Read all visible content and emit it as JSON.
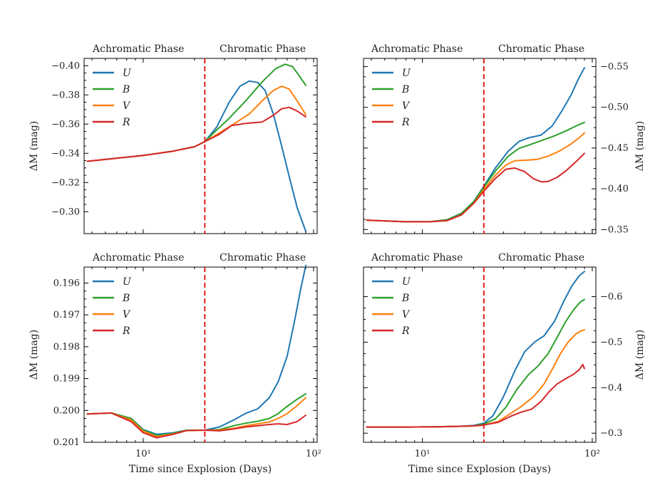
{
  "figure": {
    "xlabel": "Time since Explosion (Days)",
    "ylabel": "ΔM (mag)",
    "phase_labels": {
      "achromatic": "Achromatic Phase",
      "chromatic": "Chromatic Phase"
    },
    "divider_day": 23,
    "colors": {
      "U": "#1f77b4",
      "B": "#2ca02c",
      "V": "#ff7f0e",
      "R": "#d62728",
      "divider": "#e41a1c"
    }
  },
  "chart_data": [
    {
      "panel": "top-left",
      "type": "line",
      "xscale": "log",
      "xlim": [
        4.5,
        105
      ],
      "ylim": [
        -0.285,
        -0.405
      ],
      "yticks": [
        -0.3,
        -0.32,
        -0.34,
        -0.36,
        -0.38,
        -0.4
      ],
      "ytick_labels": [
        "−0.30",
        "−0.32",
        "−0.34",
        "−0.36",
        "−0.38",
        "−0.40"
      ],
      "xticks": [
        10,
        100
      ],
      "xtick_labels": [
        "",
        ""
      ],
      "yaxis_side": "left",
      "legend": "top-left",
      "series": [
        {
          "name": "U",
          "x": [
            4.7,
            10,
            15,
            20,
            23,
            27,
            32,
            37,
            42,
            47,
            52,
            58,
            65,
            72,
            80,
            90
          ],
          "y": [
            -0.3345,
            -0.3385,
            -0.3415,
            -0.3445,
            -0.348,
            -0.358,
            -0.375,
            -0.386,
            -0.3895,
            -0.3885,
            -0.383,
            -0.367,
            -0.345,
            -0.324,
            -0.303,
            -0.2865
          ]
        },
        {
          "name": "B",
          "x": [
            4.7,
            10,
            15,
            20,
            23,
            27,
            32,
            40,
            50,
            60,
            68,
            75,
            82,
            90
          ],
          "y": [
            -0.3345,
            -0.3385,
            -0.3415,
            -0.3445,
            -0.348,
            -0.356,
            -0.364,
            -0.376,
            -0.389,
            -0.398,
            -0.401,
            -0.3995,
            -0.3935,
            -0.3865
          ]
        },
        {
          "name": "V",
          "x": [
            4.7,
            10,
            15,
            20,
            23,
            28,
            35,
            42,
            50,
            58,
            65,
            72,
            80,
            90
          ],
          "y": [
            -0.3345,
            -0.3385,
            -0.3415,
            -0.3445,
            -0.348,
            -0.354,
            -0.361,
            -0.367,
            -0.376,
            -0.383,
            -0.386,
            -0.384,
            -0.376,
            -0.3665
          ]
        },
        {
          "name": "R",
          "x": [
            4.7,
            10,
            15,
            20,
            23,
            28,
            33,
            40,
            50,
            58,
            65,
            72,
            80,
            90
          ],
          "y": [
            -0.3345,
            -0.3385,
            -0.3415,
            -0.3445,
            -0.348,
            -0.353,
            -0.359,
            -0.3605,
            -0.3615,
            -0.366,
            -0.3705,
            -0.3715,
            -0.369,
            -0.365
          ]
        }
      ]
    },
    {
      "panel": "top-right",
      "type": "line",
      "xscale": "log",
      "xlim": [
        4.5,
        105
      ],
      "ylim": [
        -0.345,
        -0.56
      ],
      "yticks": [
        -0.35,
        -0.4,
        -0.45,
        -0.5,
        -0.55
      ],
      "ytick_labels": [
        "−0.35",
        "−0.40",
        "−0.45",
        "−0.50",
        "−0.55"
      ],
      "xticks": [
        10,
        100
      ],
      "xtick_labels": [
        "",
        ""
      ],
      "yaxis_side": "right",
      "legend": "top-left",
      "series": [
        {
          "name": "U",
          "x": [
            4.7,
            8,
            11,
            14,
            17,
            20,
            23,
            27,
            32,
            37,
            42,
            50,
            58,
            66,
            75,
            83,
            90
          ],
          "y": [
            -0.3615,
            -0.3595,
            -0.3595,
            -0.362,
            -0.37,
            -0.384,
            -0.403,
            -0.426,
            -0.446,
            -0.458,
            -0.4625,
            -0.466,
            -0.477,
            -0.495,
            -0.515,
            -0.535,
            -0.5485
          ]
        },
        {
          "name": "B",
          "x": [
            4.7,
            8,
            11,
            14,
            17,
            20,
            23,
            27,
            32,
            37,
            42,
            50,
            60,
            70,
            80,
            90
          ],
          "y": [
            -0.3615,
            -0.3595,
            -0.3595,
            -0.362,
            -0.37,
            -0.384,
            -0.402,
            -0.422,
            -0.44,
            -0.4495,
            -0.4535,
            -0.459,
            -0.465,
            -0.471,
            -0.477,
            -0.4815
          ]
        },
        {
          "name": "V",
          "x": [
            4.7,
            8,
            11,
            14,
            17,
            20,
            23,
            27,
            31,
            35,
            40,
            47,
            55,
            65,
            75,
            83,
            90
          ],
          "y": [
            -0.3615,
            -0.3595,
            -0.3595,
            -0.361,
            -0.368,
            -0.382,
            -0.399,
            -0.417,
            -0.429,
            -0.4345,
            -0.435,
            -0.436,
            -0.44,
            -0.447,
            -0.455,
            -0.462,
            -0.4685
          ]
        },
        {
          "name": "R",
          "x": [
            4.7,
            8,
            11,
            14,
            17,
            20,
            23,
            27,
            31,
            35,
            40,
            45,
            50,
            55,
            62,
            70,
            80,
            90
          ],
          "y": [
            -0.3615,
            -0.3595,
            -0.3595,
            -0.361,
            -0.368,
            -0.382,
            -0.397,
            -0.413,
            -0.424,
            -0.4255,
            -0.421,
            -0.4125,
            -0.4085,
            -0.409,
            -0.414,
            -0.422,
            -0.433,
            -0.4435
          ]
        }
      ]
    },
    {
      "panel": "bottom-left",
      "type": "line",
      "xscale": "log",
      "xlim": [
        4.5,
        105
      ],
      "ylim": [
        0.201,
        0.1955
      ],
      "yticks": [
        0.196,
        0.197,
        0.198,
        0.199,
        0.2,
        0.201
      ],
      "ytick_labels": [
        "0.196",
        "0.197",
        "0.198",
        "0.199",
        "0.200",
        "0.201"
      ],
      "xticks": [
        10,
        100
      ],
      "xtick_labels": [
        "10¹",
        "10²"
      ],
      "yaxis_side": "left",
      "legend": "top-left",
      "series": [
        {
          "name": "U",
          "x": [
            4.7,
            6.5,
            8.5,
            10,
            12,
            15,
            18,
            23,
            28,
            34,
            40,
            47,
            55,
            62,
            70,
            78,
            84,
            90
          ],
          "y": [
            0.20011,
            0.20008,
            0.20025,
            0.2006,
            0.20075,
            0.2007,
            0.20062,
            0.20062,
            0.20052,
            0.2003,
            0.20009,
            0.19995,
            0.1996,
            0.1991,
            0.1983,
            0.1971,
            0.1962,
            0.19545
          ]
        },
        {
          "name": "B",
          "x": [
            4.7,
            6.5,
            8.5,
            10,
            12,
            15,
            18,
            23,
            28,
            34,
            40,
            47,
            55,
            62,
            70,
            80,
            90
          ],
          "y": [
            0.20011,
            0.20008,
            0.20025,
            0.20062,
            0.20078,
            0.20072,
            0.20062,
            0.20062,
            0.2006,
            0.20048,
            0.2004,
            0.20034,
            0.20025,
            0.2001,
            0.19987,
            0.19965,
            0.19948
          ]
        },
        {
          "name": "V",
          "x": [
            4.7,
            6.5,
            8.5,
            10,
            12,
            15,
            18,
            23,
            28,
            34,
            40,
            47,
            55,
            62,
            70,
            80,
            90
          ],
          "y": [
            0.20011,
            0.20008,
            0.2003,
            0.20065,
            0.20082,
            0.20074,
            0.20063,
            0.20062,
            0.20062,
            0.20056,
            0.20048,
            0.20042,
            0.20036,
            0.20025,
            0.2001,
            0.19985,
            0.1996
          ]
        },
        {
          "name": "R",
          "x": [
            4.7,
            6.5,
            8.5,
            10,
            12,
            15,
            18,
            23,
            28,
            34,
            40,
            47,
            55,
            62,
            70,
            80,
            90
          ],
          "y": [
            0.20011,
            0.20008,
            0.20035,
            0.2007,
            0.20086,
            0.20075,
            0.20063,
            0.20062,
            0.20064,
            0.20058,
            0.20052,
            0.20048,
            0.20044,
            0.20042,
            0.20044,
            0.20035,
            0.20015
          ]
        }
      ]
    },
    {
      "panel": "bottom-right",
      "type": "line",
      "xscale": "log",
      "xlim": [
        4.5,
        105
      ],
      "ylim": [
        -0.28,
        -0.665
      ],
      "yticks": [
        -0.3,
        -0.4,
        -0.5,
        -0.6
      ],
      "ytick_labels": [
        "−0.3",
        "−0.4",
        "−0.5",
        "−0.6"
      ],
      "xticks": [
        10,
        100
      ],
      "xtick_labels": [
        "10¹",
        "10²"
      ],
      "yaxis_side": "right",
      "legend": "top-left",
      "series": [
        {
          "name": "U",
          "x": [
            4.7,
            8,
            12,
            16,
            20,
            23,
            26,
            30,
            35,
            40,
            46,
            52,
            60,
            68,
            76,
            84,
            90
          ],
          "y": [
            -0.3135,
            -0.3135,
            -0.314,
            -0.315,
            -0.317,
            -0.322,
            -0.338,
            -0.38,
            -0.437,
            -0.479,
            -0.501,
            -0.514,
            -0.546,
            -0.59,
            -0.624,
            -0.646,
            -0.6555
          ]
        },
        {
          "name": "B",
          "x": [
            4.7,
            8,
            12,
            16,
            20,
            23,
            27,
            31,
            36,
            42,
            48,
            55,
            62,
            70,
            78,
            85,
            90
          ],
          "y": [
            -0.3135,
            -0.3135,
            -0.314,
            -0.315,
            -0.316,
            -0.32,
            -0.332,
            -0.357,
            -0.396,
            -0.428,
            -0.448,
            -0.475,
            -0.51,
            -0.546,
            -0.572,
            -0.588,
            -0.594
          ]
        },
        {
          "name": "V",
          "x": [
            4.7,
            8,
            12,
            16,
            20,
            23,
            28,
            33,
            38,
            45,
            52,
            58,
            65,
            72,
            80,
            86,
            90
          ],
          "y": [
            -0.3135,
            -0.3135,
            -0.314,
            -0.315,
            -0.316,
            -0.318,
            -0.326,
            -0.343,
            -0.358,
            -0.38,
            -0.408,
            -0.44,
            -0.475,
            -0.5,
            -0.518,
            -0.525,
            -0.527
          ]
        },
        {
          "name": "R",
          "x": [
            4.7,
            8,
            12,
            16,
            20,
            23,
            28,
            33,
            38,
            44,
            50,
            56,
            62,
            70,
            78,
            84,
            88,
            90
          ],
          "y": [
            -0.3135,
            -0.3135,
            -0.314,
            -0.315,
            -0.316,
            -0.318,
            -0.324,
            -0.337,
            -0.346,
            -0.353,
            -0.37,
            -0.392,
            -0.408,
            -0.42,
            -0.43,
            -0.44,
            -0.451,
            -0.442
          ]
        }
      ]
    }
  ]
}
